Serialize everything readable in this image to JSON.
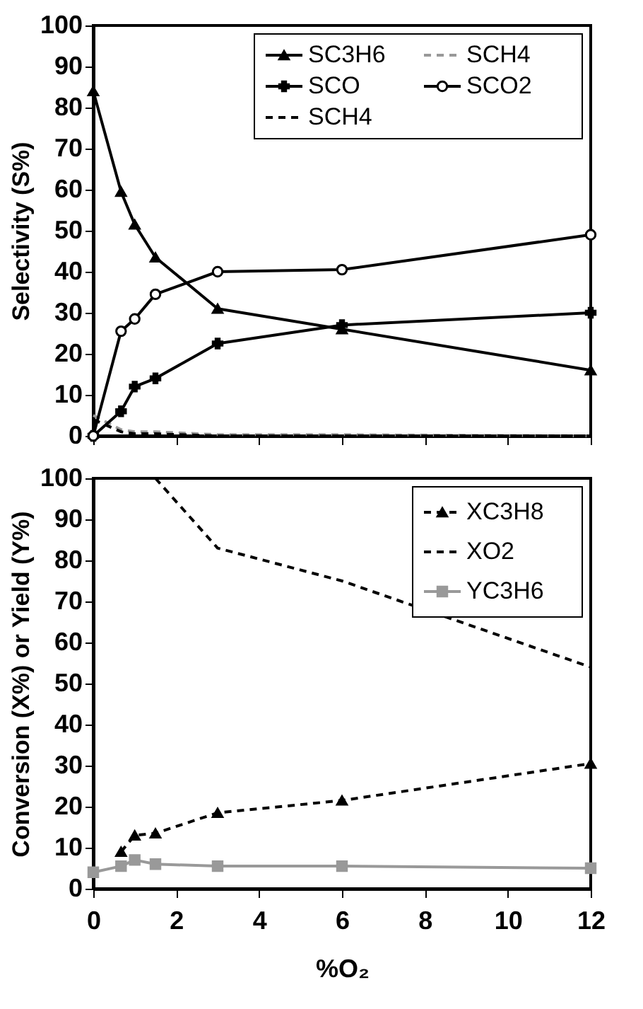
{
  "chart_data": [
    {
      "type": "line",
      "ylabel": "Selectivity (S%)",
      "xlim": [
        0,
        12
      ],
      "xticks": [
        0,
        2,
        4,
        6,
        8,
        10,
        12
      ],
      "ylim": [
        0,
        100
      ],
      "yticks": [
        0,
        10,
        20,
        30,
        40,
        50,
        60,
        70,
        80,
        90,
        100
      ],
      "tick_labels": "y",
      "grid": false,
      "legend": "top right",
      "x": [
        0,
        0.67,
        1,
        1.5,
        3,
        6,
        12
      ],
      "series": [
        {
          "name": "SC3H6",
          "color": "#000000",
          "marker": "triangle",
          "line_style": "solid",
          "values": [
            84,
            59.5,
            51.5,
            43.5,
            31,
            26,
            16
          ]
        },
        {
          "name": "SCH4",
          "color": "#999999",
          "marker": "none",
          "line_style": "dashed",
          "values": [
            5,
            1.5,
            1,
            1,
            0.3,
            0.3,
            0
          ]
        },
        {
          "name": "SCO",
          "color": "#000000",
          "marker": "cross",
          "line_style": "solid",
          "values": [
            0,
            6,
            12,
            14,
            22.5,
            27,
            30
          ]
        },
        {
          "name": "SCO2",
          "color": "#000000",
          "marker": "circle",
          "line_style": "solid",
          "values": [
            0,
            25.5,
            28.5,
            34.5,
            40,
            40.5,
            49
          ]
        },
        {
          "name": "SCH4",
          "color": "#000000",
          "marker": "none",
          "line_style": "dashed",
          "values": [
            4,
            1,
            0.5,
            0.5,
            0,
            0,
            0
          ]
        }
      ]
    },
    {
      "type": "line",
      "xlabel": "%O₂",
      "ylabel": "Conversion (X%) or Yield (Y%)",
      "xlim": [
        0,
        12
      ],
      "xticks": [
        0,
        2,
        4,
        6,
        8,
        10,
        12
      ],
      "ylim": [
        0,
        100
      ],
      "yticks": [
        0,
        10,
        20,
        30,
        40,
        50,
        60,
        70,
        80,
        90,
        100
      ],
      "grid": false,
      "legend": "top right",
      "x": [
        0,
        0.67,
        1,
        1.5,
        3,
        6,
        12
      ],
      "series": [
        {
          "name": "XC3H8",
          "color": "#000000",
          "marker": "triangle",
          "line_style": "dashed",
          "x": [
            0.67,
            1,
            1.5,
            3,
            6,
            12
          ],
          "values": [
            9,
            13,
            13.5,
            18.5,
            21.5,
            30.5
          ]
        },
        {
          "name": "XO2",
          "color": "#000000",
          "marker": "none",
          "line_style": "dashed",
          "x": [
            1.5,
            3,
            6,
            12
          ],
          "values": [
            100,
            83,
            75,
            54
          ]
        },
        {
          "name": "YC3H6",
          "color": "#999999",
          "marker": "square",
          "line_style": "solid",
          "values": [
            4,
            5.5,
            7,
            6,
            5.5,
            5.5,
            5
          ]
        }
      ]
    }
  ]
}
